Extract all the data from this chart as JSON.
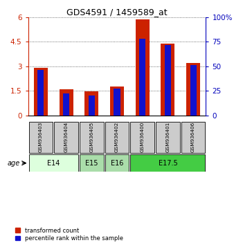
{
  "title": "GDS4591 / 1459589_at",
  "samples": [
    "GSM936403",
    "GSM936404",
    "GSM936405",
    "GSM936402",
    "GSM936400",
    "GSM936401",
    "GSM936406"
  ],
  "red_values": [
    2.9,
    1.6,
    1.45,
    1.75,
    5.85,
    4.4,
    3.2
  ],
  "blue_percentiles": [
    46,
    22,
    20,
    27,
    78,
    72,
    51
  ],
  "left_ylim": [
    0,
    6
  ],
  "left_yticks": [
    0,
    1.5,
    3,
    4.5,
    6
  ],
  "left_yticklabels": [
    "0",
    "1.5",
    "3",
    "4.5",
    "6"
  ],
  "right_ylim": [
    0,
    100
  ],
  "right_yticks": [
    0,
    25,
    50,
    75,
    100
  ],
  "right_yticklabels": [
    "0",
    "25",
    "50",
    "75",
    "100%"
  ],
  "age_groups": [
    {
      "label": "E14",
      "start": 0,
      "end": 1,
      "color": "#ddffdd"
    },
    {
      "label": "E15",
      "start": 2,
      "end": 2,
      "color": "#bbeecc"
    },
    {
      "label": "E16",
      "start": 3,
      "end": 3,
      "color": "#bbeecc"
    },
    {
      "label": "E17.5",
      "start": 4,
      "end": 6,
      "color": "#44cc44"
    }
  ],
  "bar_color_red": "#cc2200",
  "bar_color_blue": "#1111cc",
  "red_bar_width": 0.55,
  "blue_bar_width": 0.25,
  "legend_labels": [
    "transformed count",
    "percentile rank within the sample"
  ],
  "dotted_line_color": "#444444",
  "sample_box_color": "#cccccc",
  "right_axis_color": "#0000bb",
  "left_axis_color": "#cc2200",
  "bg_color": "#ffffff"
}
